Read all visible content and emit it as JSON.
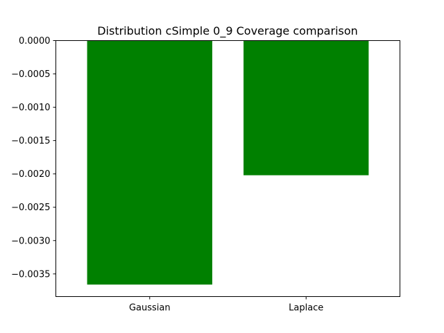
{
  "chart_data": {
    "type": "bar",
    "title": "Distribution cSimple 0_9 Coverage comparison",
    "xlabel": "",
    "ylabel": "",
    "categories": [
      "Gaussian",
      "Laplace"
    ],
    "values": [
      -0.00366,
      -0.00202
    ],
    "bar_color": "#008000",
    "ylim": [
      -0.00384,
      0.0
    ],
    "yticks": [
      0.0,
      -0.0005,
      -0.001,
      -0.0015,
      -0.002,
      -0.0025,
      -0.003,
      -0.0035
    ],
    "ytick_labels": [
      "0.0000",
      "−0.0005",
      "−0.0010",
      "−0.0015",
      "−0.0020",
      "−0.0025",
      "−0.0030",
      "−0.0035"
    ],
    "grid": false,
    "legend": "none"
  }
}
